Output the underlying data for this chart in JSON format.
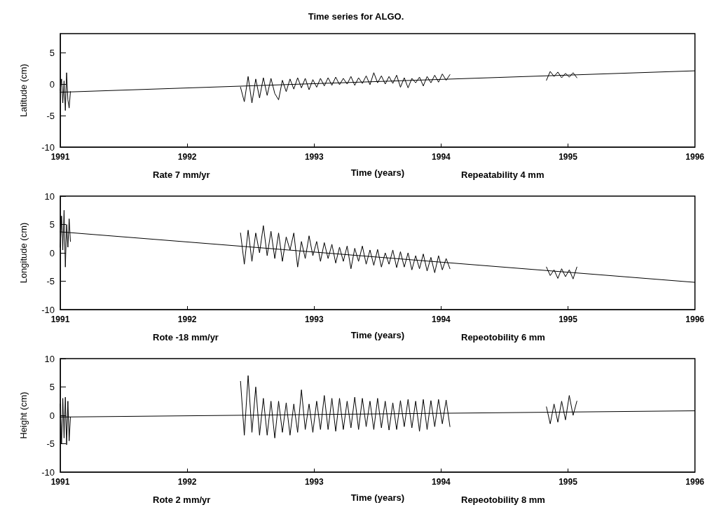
{
  "chart_data": [
    {
      "type": "line",
      "title": "Time series for ALGO.",
      "ylabel": "Latitude (cm)",
      "xlabel": "Time (years)",
      "annotations": [
        "Rate 7 mm/yr",
        "Repeatability 4 mm"
      ],
      "xlim": [
        1991,
        1996
      ],
      "xticks": [
        1991,
        1992,
        1993,
        1994,
        1995,
        1996
      ],
      "ylim": [
        -10,
        8
      ],
      "yticks": [
        -10,
        -5,
        0,
        5
      ],
      "grid": false,
      "marker": "none",
      "line_style": "solid",
      "series": [
        {
          "color": "#000000",
          "x": [
            1991.0,
            1991.01,
            1991.02,
            1991.03,
            1991.04,
            1991.05,
            1991.06,
            1991.07,
            1991.08,
            1991.2,
            1992.42,
            1992.45,
            1992.48,
            1992.51,
            1992.54,
            1992.57,
            1992.6,
            1992.63,
            1992.66,
            1992.69,
            1992.72,
            1992.75,
            1992.78,
            1992.81,
            1992.84,
            1992.87,
            1992.9,
            1992.93,
            1992.96,
            1992.99,
            1993.02,
            1993.05,
            1993.08,
            1993.11,
            1993.14,
            1993.17,
            1993.2,
            1993.23,
            1993.26,
            1993.29,
            1993.32,
            1993.35,
            1993.38,
            1993.41,
            1993.44,
            1993.47,
            1993.5,
            1993.53,
            1993.56,
            1993.59,
            1993.62,
            1993.65,
            1993.68,
            1993.71,
            1993.74,
            1993.77,
            1993.8,
            1993.83,
            1993.86,
            1993.89,
            1993.92,
            1993.95,
            1993.98,
            1994.01,
            1994.04,
            1994.07,
            1994.5,
            1994.83,
            1994.86,
            1994.89,
            1994.92,
            1994.95,
            1994.98,
            1995.01,
            1995.04,
            1995.07
          ],
          "values": [
            -1,
            0.8,
            -3,
            0.5,
            -4.2,
            1.8,
            -2.5,
            -3.8,
            -1.2,
            null,
            -0.5,
            -2.8,
            1.2,
            -3,
            0.8,
            -2.2,
            1,
            -1.8,
            0.9,
            -1.5,
            -2.5,
            0.6,
            -1.2,
            0.8,
            -0.8,
            1,
            -0.6,
            0.9,
            -0.9,
            0.7,
            -0.5,
            0.9,
            -0.3,
            1,
            -0.2,
            1.1,
            -0.1,
            0.9,
            0,
            1.2,
            -0.2,
            1,
            0.1,
            1.3,
            -0.1,
            1.8,
            0.2,
            1.3,
            0,
            1.2,
            0.1,
            1.4,
            -0.5,
            1,
            -0.6,
            0.9,
            0.2,
            1.1,
            -0.3,
            1.2,
            0.2,
            1.4,
            0.3,
            1.6,
            0.6,
            1.5,
            null,
            0.6,
            2,
            1.2,
            1.9,
            1,
            1.7,
            1.1,
            1.8,
            1
          ]
        },
        {
          "color": "#000000",
          "x": [
            1991,
            1996
          ],
          "values": [
            -1.3,
            2.1
          ]
        }
      ]
    },
    {
      "type": "line",
      "ylabel": "Longitude (cm)",
      "xlabel": "Time (years)",
      "annotations": [
        "Rote -18 mm/yr",
        "Repeotobility 6 mm"
      ],
      "xlim": [
        1991,
        1996
      ],
      "xticks": [
        1991,
        1992,
        1993,
        1994,
        1995,
        1996
      ],
      "ylim": [
        -10,
        10
      ],
      "yticks": [
        -10,
        -5,
        0,
        5,
        10
      ],
      "grid": false,
      "marker": "none",
      "line_style": "solid",
      "series": [
        {
          "color": "#000000",
          "x": [
            1991.0,
            1991.01,
            1991.02,
            1991.03,
            1991.04,
            1991.05,
            1991.06,
            1991.07,
            1991.08,
            1991.2,
            1992.42,
            1992.45,
            1992.48,
            1992.51,
            1992.54,
            1992.57,
            1992.6,
            1992.63,
            1992.66,
            1992.69,
            1992.72,
            1992.75,
            1992.78,
            1992.81,
            1992.84,
            1992.87,
            1992.9,
            1992.93,
            1992.96,
            1992.99,
            1993.02,
            1993.05,
            1993.08,
            1993.11,
            1993.14,
            1993.17,
            1993.2,
            1993.23,
            1993.26,
            1993.29,
            1993.32,
            1993.35,
            1993.38,
            1993.41,
            1993.44,
            1993.47,
            1993.5,
            1993.53,
            1993.56,
            1993.59,
            1993.62,
            1993.65,
            1993.68,
            1993.71,
            1993.74,
            1993.77,
            1993.8,
            1993.83,
            1993.86,
            1993.89,
            1993.92,
            1993.95,
            1993.98,
            1994.01,
            1994.04,
            1994.07,
            1994.5,
            1994.83,
            1994.86,
            1994.89,
            1994.92,
            1994.95,
            1994.98,
            1995.01,
            1995.04,
            1995.07
          ],
          "values": [
            1,
            6.5,
            0.5,
            7.5,
            -2.5,
            5,
            1,
            6,
            2,
            null,
            3.5,
            -2,
            4,
            -1.5,
            3.5,
            0,
            4.8,
            -0.5,
            3.8,
            -1,
            3.5,
            -1.5,
            2.8,
            0.5,
            3.5,
            -2.5,
            2,
            -1,
            3,
            -0.5,
            2,
            -1.5,
            1.8,
            -1,
            1.5,
            -1.8,
            1,
            -1.5,
            1.2,
            -2.8,
            0.8,
            -1.5,
            1.2,
            -2,
            0.5,
            -2.2,
            0.6,
            -2.5,
            0,
            -2,
            0.5,
            -2.6,
            0.2,
            -2.5,
            0,
            -3,
            -0.5,
            -2.8,
            -0.2,
            -3.2,
            -0.8,
            -3.5,
            -0.5,
            -3,
            -1,
            -2.8,
            null,
            -2.5,
            -4,
            -3,
            -4.5,
            -2.8,
            -4.2,
            -3,
            -4.6,
            -2.5
          ]
        },
        {
          "color": "#000000",
          "x": [
            1991,
            1996
          ],
          "values": [
            3.7,
            -5.2
          ]
        }
      ]
    },
    {
      "type": "line",
      "ylabel": "Height (cm)",
      "xlabel": "Time (years)",
      "annotations": [
        "Rote 2 mm/yr",
        "Repeotobility 8 mm"
      ],
      "xlim": [
        1991,
        1996
      ],
      "xticks": [
        1991,
        1992,
        1993,
        1994,
        1995,
        1996
      ],
      "ylim": [
        -10,
        10
      ],
      "yticks": [
        -10,
        -5,
        0,
        5,
        10
      ],
      "grid": false,
      "marker": "none",
      "line_style": "solid",
      "series": [
        {
          "color": "#000000",
          "x": [
            1991.0,
            1991.01,
            1991.02,
            1991.03,
            1991.04,
            1991.05,
            1991.06,
            1991.07,
            1991.08,
            1991.2,
            1992.42,
            1992.45,
            1992.48,
            1992.51,
            1992.54,
            1992.57,
            1992.6,
            1992.63,
            1992.66,
            1992.69,
            1992.72,
            1992.75,
            1992.78,
            1992.81,
            1992.84,
            1992.87,
            1992.9,
            1992.93,
            1992.96,
            1992.99,
            1993.02,
            1993.05,
            1993.08,
            1993.11,
            1993.14,
            1993.17,
            1993.2,
            1993.23,
            1993.26,
            1993.29,
            1993.32,
            1993.35,
            1993.38,
            1993.41,
            1993.44,
            1993.47,
            1993.5,
            1993.53,
            1993.56,
            1993.59,
            1993.62,
            1993.65,
            1993.68,
            1993.71,
            1993.74,
            1993.77,
            1993.8,
            1993.83,
            1993.86,
            1993.89,
            1993.92,
            1993.95,
            1993.98,
            1994.01,
            1994.04,
            1994.07,
            1994.5,
            1994.83,
            1994.86,
            1994.89,
            1994.92,
            1994.95,
            1994.98,
            1995.01,
            1995.04,
            1995.07
          ],
          "values": [
            2,
            -5,
            3,
            -4,
            3.2,
            -5.2,
            2.5,
            -4.5,
            -0.3,
            null,
            6,
            -3.5,
            7,
            -3,
            5,
            -3.5,
            3,
            -3.5,
            2.5,
            -4,
            2.5,
            -3,
            2.2,
            -3.5,
            2,
            -3,
            4.5,
            -2.5,
            2,
            -3,
            2.5,
            -2.5,
            3.5,
            -2.5,
            3,
            -2.8,
            3,
            -2.5,
            2.5,
            -2.2,
            3.2,
            -2.5,
            3,
            -2,
            2.5,
            -2.5,
            3,
            -2.2,
            2.5,
            -2.6,
            2.2,
            -2.5,
            2.6,
            -2,
            2.8,
            -2.2,
            2.5,
            -2.8,
            2.8,
            -2.5,
            2.6,
            -2,
            2.8,
            -1.5,
            2.7,
            -2,
            null,
            1.5,
            -1.5,
            2,
            -1.2,
            2.5,
            -0.8,
            3.5,
            0,
            2.5
          ]
        },
        {
          "color": "#000000",
          "x": [
            1991,
            1996
          ],
          "values": [
            -0.3,
            0.8
          ]
        }
      ]
    }
  ]
}
